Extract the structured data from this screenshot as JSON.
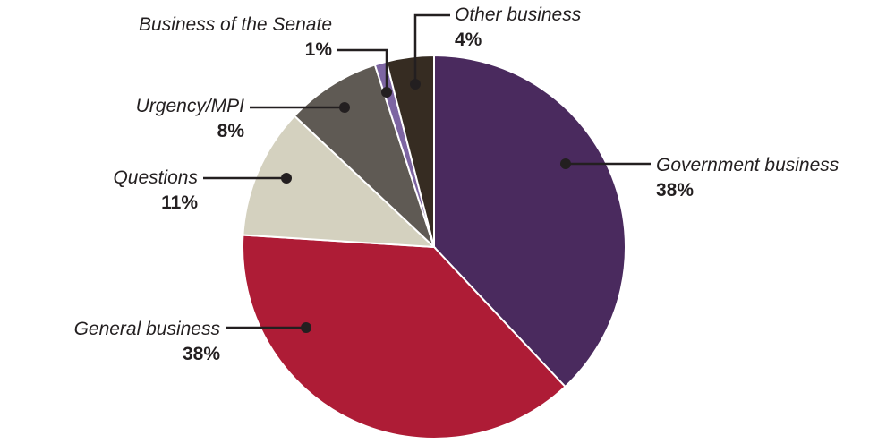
{
  "chart_data": {
    "type": "pie",
    "title": "",
    "start": "top",
    "direction": "clockwise",
    "slices": [
      {
        "name": "Government business",
        "value": 38,
        "label": "38%",
        "color": "#4a2a5e"
      },
      {
        "name": "General business",
        "value": 38,
        "label": "38%",
        "color": "#ae1c36"
      },
      {
        "name": "Questions",
        "value": 11,
        "label": "11%",
        "color": "#d4d1bf"
      },
      {
        "name": "Urgency/MPI",
        "value": 8,
        "label": "8%",
        "color": "#5f5a54"
      },
      {
        "name": "Business of the Senate",
        "value": 1,
        "label": "1%",
        "color": "#7d65a2"
      },
      {
        "name": "Other business",
        "value": 4,
        "label": "4%",
        "color": "#362c22"
      }
    ]
  }
}
